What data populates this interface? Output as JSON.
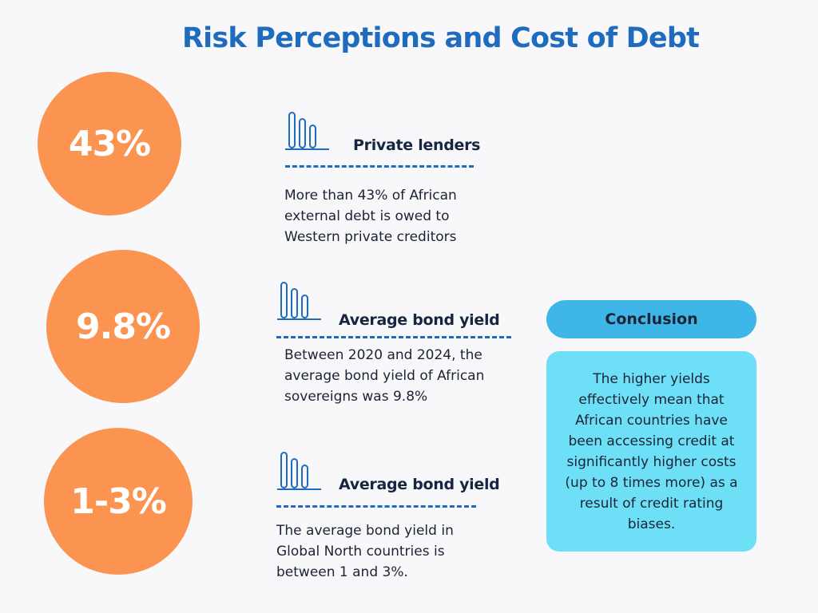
{
  "title": "Risk Perceptions and Cost of Debt",
  "stats": [
    {
      "value": "43%",
      "heading": "Private lenders",
      "description": "More than 43% of African external debt is owed to Western private creditors",
      "icon": "bar-chart-icon"
    },
    {
      "value": "9.8%",
      "heading": "Average bond yield",
      "description": "Between 2020 and 2024, the average bond yield of African sovereigns was 9.8%",
      "icon": "bar-chart-icon"
    },
    {
      "value": "1-3%",
      "heading": "Average bond yield",
      "description": "The average bond yield in Global North countries is between 1 and 3%.",
      "icon": "bar-chart-icon"
    }
  ],
  "conclusion": {
    "label": "Conclusion",
    "text": "The higher yields effectively mean that African countries have been accessing credit at significantly higher costs (up to 8 times more) as a result of credit rating biases."
  },
  "colors": {
    "title": "#1f6bbd",
    "circle": "#fb9450",
    "pill": "#3fb6e8",
    "box": "#6de0f7"
  }
}
